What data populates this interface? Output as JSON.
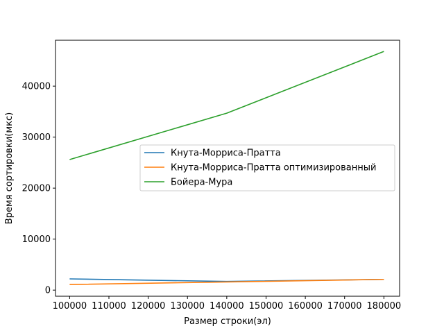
{
  "chart_data": {
    "type": "line",
    "title": "",
    "xlabel": "Размер строки(эл)",
    "ylabel": "Время сортировки(мкс)",
    "xlim": [
      96400,
      184000
    ],
    "ylim": [
      -1200,
      49000
    ],
    "xticks": [
      100000,
      110000,
      120000,
      130000,
      140000,
      150000,
      160000,
      170000,
      180000
    ],
    "xtick_labels": [
      "100000",
      "110000",
      "120000",
      "130000",
      "140000",
      "150000",
      "160000",
      "170000",
      "180000"
    ],
    "yticks": [
      0,
      10000,
      20000,
      30000,
      40000
    ],
    "ytick_labels": [
      "0",
      "10000",
      "20000",
      "30000",
      "40000"
    ],
    "grid": false,
    "legend_position": "center-right",
    "x": [
      100000,
      140000,
      180000
    ],
    "series": [
      {
        "name": "Кнута-Морриса-Пратта",
        "color": "#1f77b4",
        "values": [
          2200,
          1700,
          2100
        ]
      },
      {
        "name": "Кнута-Морриса-Пратта оптимизированный",
        "color": "#ff7f0e",
        "values": [
          1100,
          1600,
          2100
        ]
      },
      {
        "name": "Бойера-Мура",
        "color": "#2ca02c",
        "values": [
          25600,
          34700,
          46800
        ]
      }
    ]
  }
}
